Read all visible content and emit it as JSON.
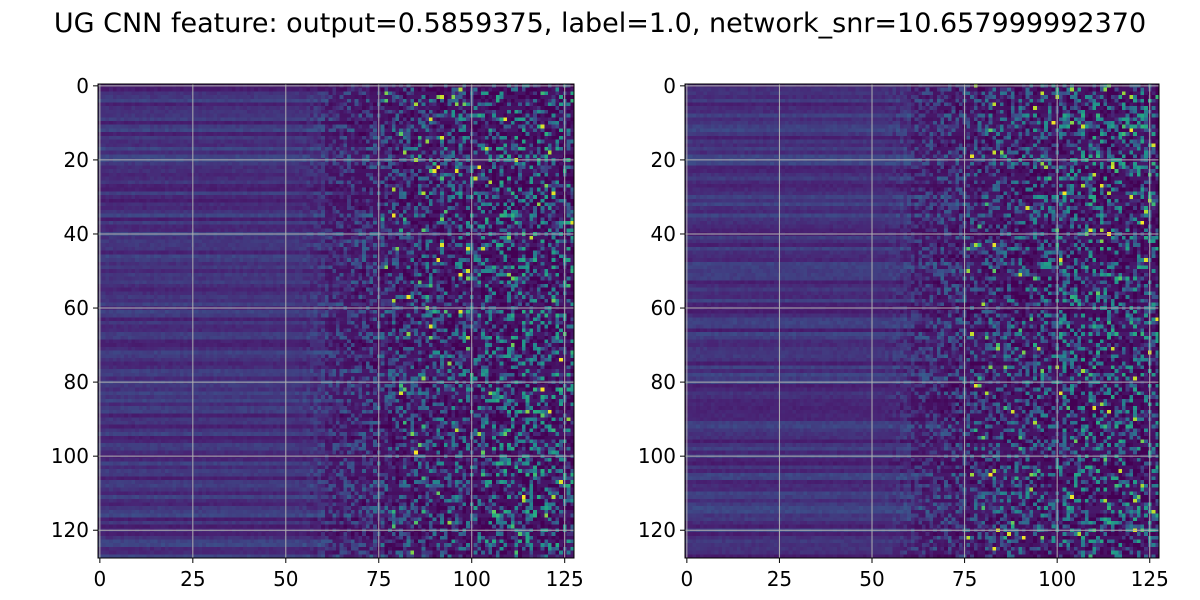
{
  "figure": {
    "title": "UG CNN feature: output=0.5859375, label=1.0, network_snr=10.657999992370"
  },
  "chart_data": [
    {
      "type": "heatmap",
      "title": "",
      "xlabel": "",
      "ylabel": "",
      "grid": true,
      "grid_color": "#b0b0b0",
      "colormap": "viridis",
      "rows": 128,
      "cols": 128,
      "xlim": [
        -0.5,
        127.5
      ],
      "ylim": [
        127.5,
        -0.5
      ],
      "xticks": [
        0,
        25,
        50,
        75,
        100,
        125
      ],
      "yticks": [
        0,
        20,
        40,
        60,
        80,
        100,
        120
      ],
      "xtick_labels": [
        "0",
        "25",
        "50",
        "75",
        "100",
        "125"
      ],
      "ytick_labels": [
        "0",
        "20",
        "40",
        "60",
        "80",
        "100",
        "120"
      ],
      "description": "Left dark horizontal banded region (cols 0-50), noisy speckled texture increasing to the right with bright yellow-green speckles"
    },
    {
      "type": "heatmap",
      "title": "",
      "xlabel": "",
      "ylabel": "",
      "grid": true,
      "grid_color": "#b0b0b0",
      "colormap": "viridis",
      "rows": 128,
      "cols": 128,
      "xlim": [
        -0.5,
        127.5
      ],
      "ylim": [
        127.5,
        -0.5
      ],
      "xticks": [
        0,
        25,
        50,
        75,
        100,
        125
      ],
      "yticks": [
        0,
        20,
        40,
        60,
        80,
        100,
        120
      ],
      "xtick_labels": [
        "0",
        "25",
        "50",
        "75",
        "100",
        "125"
      ],
      "ytick_labels": [
        "0",
        "20",
        "40",
        "60",
        "80",
        "100",
        "120"
      ],
      "description": "Left dark horizontal banded region (cols 0-50), noisy speckled texture increasing to the right with bright yellow-green speckles"
    }
  ]
}
